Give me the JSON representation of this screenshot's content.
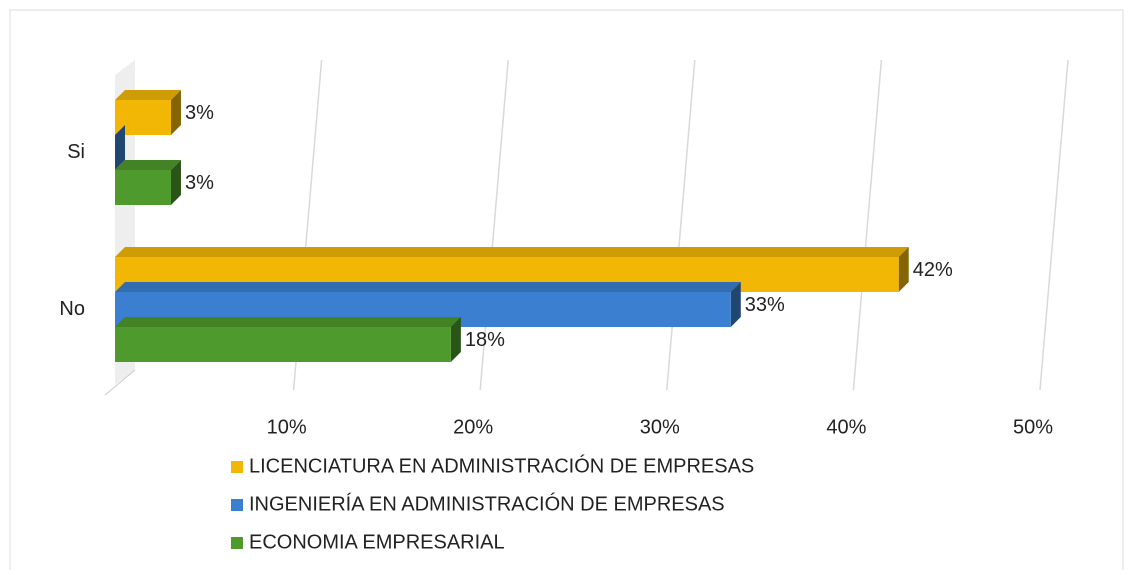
{
  "chart_data": {
    "type": "bar",
    "orientation": "horizontal",
    "categories": [
      "Si",
      "No"
    ],
    "series": [
      {
        "name": "LICENCIATURA EN ADMINISTRACIÓN DE EMPRESAS",
        "color": "#f2b705",
        "values": [
          3,
          42
        ],
        "value_labels": [
          "3%",
          "42%"
        ]
      },
      {
        "name": "INGENIERÍA EN ADMINISTRACIÓN DE EMPRESAS",
        "color": "#3b7fd0",
        "values": [
          0,
          33
        ],
        "value_labels": [
          null,
          "33%"
        ]
      },
      {
        "name": "ECONOMIA EMPRESARIAL",
        "color": "#4f9a2c",
        "values": [
          3,
          18
        ],
        "value_labels": [
          "3%",
          "18%"
        ]
      }
    ],
    "xlim": [
      0,
      50
    ],
    "xticks": [
      {
        "value": 10,
        "label": "10%"
      },
      {
        "value": 20,
        "label": "20%"
      },
      {
        "value": 30,
        "label": "30%"
      },
      {
        "value": 40,
        "label": "40%"
      },
      {
        "value": 50,
        "label": "50%"
      }
    ],
    "grid": true,
    "legend": "bottom"
  }
}
